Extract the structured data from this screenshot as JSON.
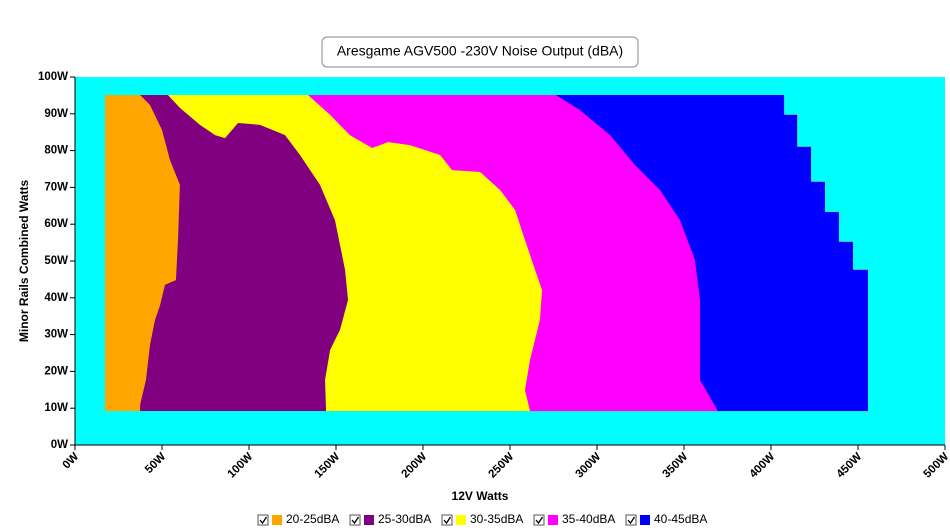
{
  "chart_data": {
    "type": "contour",
    "title": "Aresgame AGV500 -230V Noise Output (dBA)",
    "xlabel": "12V Watts",
    "ylabel": "Minor Rails Combined Watts",
    "xlim": [
      0,
      500
    ],
    "ylim": [
      0,
      100
    ],
    "xticks": [
      {
        "value": 0,
        "label": "0W"
      },
      {
        "value": 50,
        "label": "50W"
      },
      {
        "value": 100,
        "label": "100W"
      },
      {
        "value": 150,
        "label": "150W"
      },
      {
        "value": 200,
        "label": "200W"
      },
      {
        "value": 250,
        "label": "250W"
      },
      {
        "value": 300,
        "label": "300W"
      },
      {
        "value": 350,
        "label": "350W"
      },
      {
        "value": 400,
        "label": "400W"
      },
      {
        "value": 450,
        "label": "450W"
      },
      {
        "value": 500,
        "label": "500W"
      }
    ],
    "yticks": [
      {
        "value": 0,
        "label": "0W"
      },
      {
        "value": 10,
        "label": "10W"
      },
      {
        "value": 20,
        "label": "20W"
      },
      {
        "value": 30,
        "label": "30W"
      },
      {
        "value": 40,
        "label": "40W"
      },
      {
        "value": 50,
        "label": "50W"
      },
      {
        "value": 60,
        "label": "60W"
      },
      {
        "value": 70,
        "label": "70W"
      },
      {
        "value": 80,
        "label": "80W"
      },
      {
        "value": 90,
        "label": "90W"
      },
      {
        "value": 100,
        "label": "100W"
      }
    ],
    "plot_background": "#00ffff",
    "region": {
      "x": [
        17.2,
        407.5,
        407.5,
        415,
        415,
        423,
        423,
        431,
        431,
        439,
        439,
        447.1,
        447.1,
        455.7,
        455.7,
        17.2
      ],
      "y": [
        95.1,
        95.1,
        89.7,
        89.7,
        81,
        81,
        71.5,
        71.5,
        63.3,
        63.3,
        55.2,
        55.2,
        47.6,
        47.6,
        9.2,
        9.2
      ]
    },
    "series": [
      {
        "name": "20-25dBA",
        "color": "#ffa500",
        "x": [
          17.2,
          17.2
        ],
        "y": [
          95.1,
          9.2
        ]
      },
      {
        "name": "25-30dBA",
        "color": "#800080",
        "x": [
          37.4,
          43.1,
          50,
          54.6,
          60.3,
          59.2,
          58,
          51.7,
          48.9,
          46,
          43.1,
          40.8,
          37.4,
          37.4
        ],
        "y": [
          95.1,
          92.4,
          85.6,
          77.4,
          70.7,
          55.7,
          44.8,
          43.5,
          38,
          34,
          27.2,
          17.7,
          10.9,
          9.2
        ]
      },
      {
        "name": "30-35dBA",
        "color": "#ffff00",
        "x": [
          53.4,
          60.3,
          71.8,
          80.5,
          86.2,
          93.7,
          106.3,
          120.7,
          129.3,
          140.8,
          149.4,
          155.2,
          156.9,
          152.3,
          146.6,
          143.7,
          144.3
        ],
        "y": [
          95.1,
          91.6,
          87,
          84.2,
          83.4,
          87.5,
          87,
          84.2,
          78.8,
          70.7,
          61.1,
          47.6,
          39.4,
          31.3,
          25.8,
          17.7,
          9.2
        ]
      },
      {
        "name": "35-40dBA",
        "color": "#ff00ff",
        "x": [
          133.9,
          146.6,
          158,
          170.7,
          179.9,
          192.5,
          209.8,
          216.7,
          232.8,
          244.3,
          252.9,
          258.6,
          264.4,
          268.4,
          267.2,
          261.5,
          258.6,
          261.5
        ],
        "y": [
          95.1,
          89.7,
          84.2,
          80.7,
          82.3,
          81.5,
          78.8,
          74.7,
          74.2,
          69.3,
          63.9,
          55.7,
          47.6,
          42.1,
          34,
          23.1,
          14.9,
          9.2
        ]
      },
      {
        "name": "40-45dBA",
        "color": "#0000ff",
        "x": [
          276.4,
          290.2,
          307.5,
          321.8,
          336.2,
          347.7,
          356.3,
          359.2,
          359.2,
          369.5
        ],
        "y": [
          95.1,
          91,
          84.2,
          76.1,
          69.3,
          61.1,
          50.3,
          39.4,
          17.7,
          9.2
        ]
      }
    ]
  }
}
